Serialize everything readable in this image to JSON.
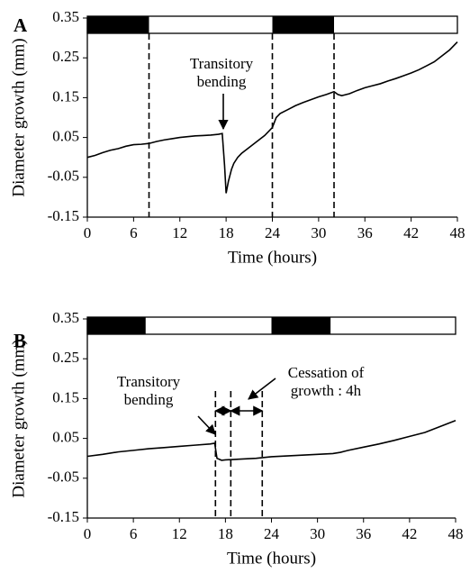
{
  "chart_data": [
    {
      "type": "line",
      "panel_label": "A",
      "x_label": "Time (hours)",
      "y_label": "Diameter growth (mm)",
      "xlim": [
        0,
        48
      ],
      "xticks": [
        0,
        6,
        12,
        18,
        24,
        30,
        36,
        42,
        48
      ],
      "ylim": [
        -0.15,
        0.35
      ],
      "yticks": [
        -0.15,
        -0.05,
        0.05,
        0.15,
        0.25,
        0.35
      ],
      "dark_periods": [
        [
          0,
          8
        ],
        [
          24,
          32
        ]
      ],
      "dashed_lines": [
        8,
        24,
        32
      ],
      "annotations": [
        {
          "lines": [
            "Transitory",
            "bending"
          ]
        }
      ],
      "series": [
        {
          "color": "#000000",
          "x": [
            0,
            1,
            2,
            3,
            4,
            5,
            6,
            7,
            8,
            9,
            10,
            11,
            12,
            13,
            14,
            15,
            16,
            17,
            17.5,
            17.8,
            18,
            18.3,
            18.7,
            19,
            19.5,
            20,
            21,
            22,
            23,
            24,
            24.5,
            25,
            26,
            27,
            28,
            29,
            30,
            31,
            32,
            32.5,
            33,
            34,
            35,
            36,
            37,
            38,
            39,
            40,
            41,
            42,
            43,
            44,
            45,
            46,
            47,
            48
          ],
          "values": [
            0.0,
            0.005,
            0.012,
            0.018,
            0.022,
            0.028,
            0.032,
            0.033,
            0.035,
            0.04,
            0.044,
            0.047,
            0.05,
            0.052,
            0.054,
            0.055,
            0.056,
            0.058,
            0.06,
            -0.02,
            -0.09,
            -0.06,
            -0.03,
            -0.015,
            0.0,
            0.01,
            0.025,
            0.04,
            0.055,
            0.075,
            0.1,
            0.11,
            0.12,
            0.13,
            0.138,
            0.145,
            0.152,
            0.158,
            0.165,
            0.158,
            0.155,
            0.16,
            0.168,
            0.175,
            0.18,
            0.185,
            0.192,
            0.198,
            0.205,
            0.212,
            0.22,
            0.23,
            0.24,
            0.255,
            0.27,
            0.29
          ]
        }
      ]
    },
    {
      "type": "line",
      "panel_label": "B",
      "x_label": "Time (hours)",
      "y_label": "Diameter growth (mm)",
      "xlim": [
        0,
        48
      ],
      "xticks": [
        0,
        6,
        12,
        18,
        24,
        30,
        36,
        42,
        48
      ],
      "ylim": [
        -0.15,
        0.35
      ],
      "yticks": [
        -0.15,
        -0.05,
        0.05,
        0.15,
        0.25,
        0.35
      ],
      "dark_periods": [
        [
          0,
          7.6
        ],
        [
          24,
          31.7
        ]
      ],
      "dashed_lines": [
        16.7,
        18.7,
        22.8
      ],
      "annotations": [
        {
          "lines": [
            "Transitory",
            "bending"
          ]
        },
        {
          "lines": [
            "Cessation of",
            "growth : 4h"
          ]
        }
      ],
      "series": [
        {
          "color": "#000000",
          "x": [
            0,
            2,
            4,
            6,
            8,
            10,
            12,
            14,
            16,
            16.6,
            16.9,
            17.5,
            18,
            20,
            22,
            24,
            26,
            28,
            30,
            32,
            33,
            34,
            36,
            38,
            40,
            42,
            44,
            46,
            48
          ],
          "values": [
            0.005,
            0.01,
            0.016,
            0.02,
            0.024,
            0.027,
            0.03,
            0.033,
            0.036,
            0.038,
            0.0,
            -0.005,
            -0.004,
            -0.002,
            0.0,
            0.004,
            0.006,
            0.008,
            0.01,
            0.012,
            0.015,
            0.02,
            0.028,
            0.036,
            0.045,
            0.055,
            0.065,
            0.08,
            0.095
          ]
        }
      ]
    }
  ]
}
